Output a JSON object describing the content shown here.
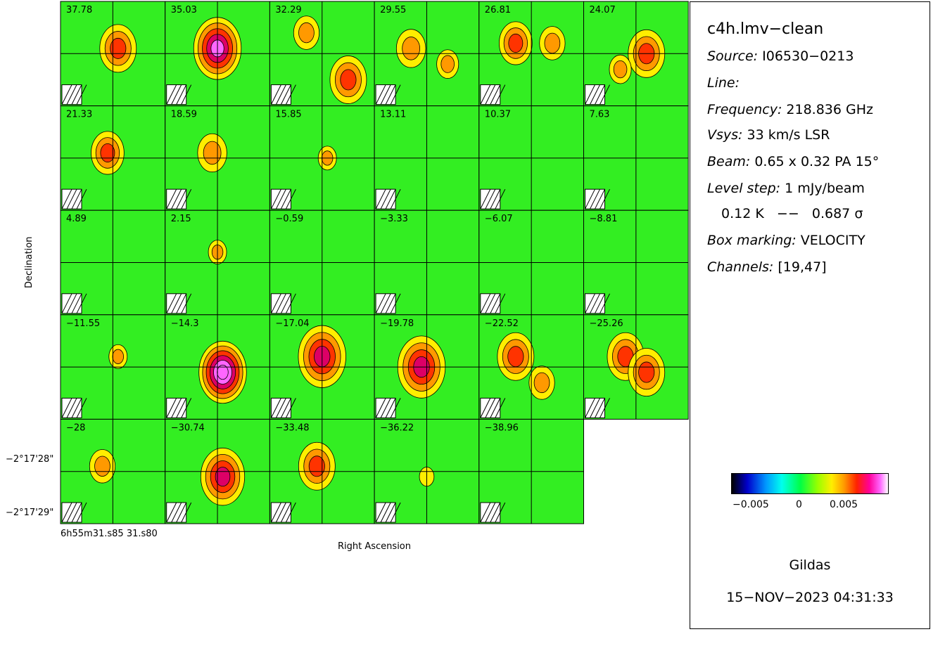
{
  "panels": [
    {
      "label": "37.78"
    },
    {
      "label": "35.03"
    },
    {
      "label": "32.29"
    },
    {
      "label": "29.55"
    },
    {
      "label": "26.81"
    },
    {
      "label": "24.07"
    },
    {
      "label": "21.33"
    },
    {
      "label": "18.59"
    },
    {
      "label": "15.85"
    },
    {
      "label": "13.11"
    },
    {
      "label": "10.37"
    },
    {
      "label": "7.63"
    },
    {
      "label": "4.89"
    },
    {
      "label": "2.15"
    },
    {
      "label": "−0.59"
    },
    {
      "label": "−3.33"
    },
    {
      "label": "−6.07"
    },
    {
      "label": "−8.81"
    },
    {
      "label": "−11.55"
    },
    {
      "label": "−14.3"
    },
    {
      "label": "−17.04"
    },
    {
      "label": "−19.78"
    },
    {
      "label": "−22.52"
    },
    {
      "label": "−25.26"
    },
    {
      "label": "−28"
    },
    {
      "label": "−30.74"
    },
    {
      "label": "−33.48"
    },
    {
      "label": "−36.22"
    },
    {
      "label": "−38.96"
    }
  ],
  "axes": {
    "ylabel": "Declination",
    "xlabel": "Right Ascension",
    "yticks": [
      "−2°17'28\"",
      "−2°17'29\""
    ],
    "xtick_ra": "6h55m31.s85 31.s80"
  },
  "info": {
    "title": "c4h.lmv−clean",
    "source_label": "Source:",
    "source_value": "I06530−0213",
    "line_label": "Line:",
    "freq_label": "Frequency:",
    "freq_value": "218.836 GHz",
    "vsys_label": "Vsys:",
    "vsys_value": "33 km/s LSR",
    "beam_label": "Beam:",
    "beam_value": "0.65 x 0.32 PA 15°",
    "level_label": "Level step:",
    "level_value": "1 mJy/beam",
    "level_k": "0.12 K   −−   0.687 σ",
    "box_label": "Box marking:",
    "box_value": "VELOCITY",
    "chan_label": "Channels:",
    "chan_value": "[19,47]",
    "colorbar_ticks": [
      "−0.005",
      "0",
      "0.005"
    ],
    "software": "Gildas",
    "date": "15−NOV−2023 04:31:33"
  },
  "colors": {
    "background_map": "#33ee22",
    "border": "#000000"
  }
}
